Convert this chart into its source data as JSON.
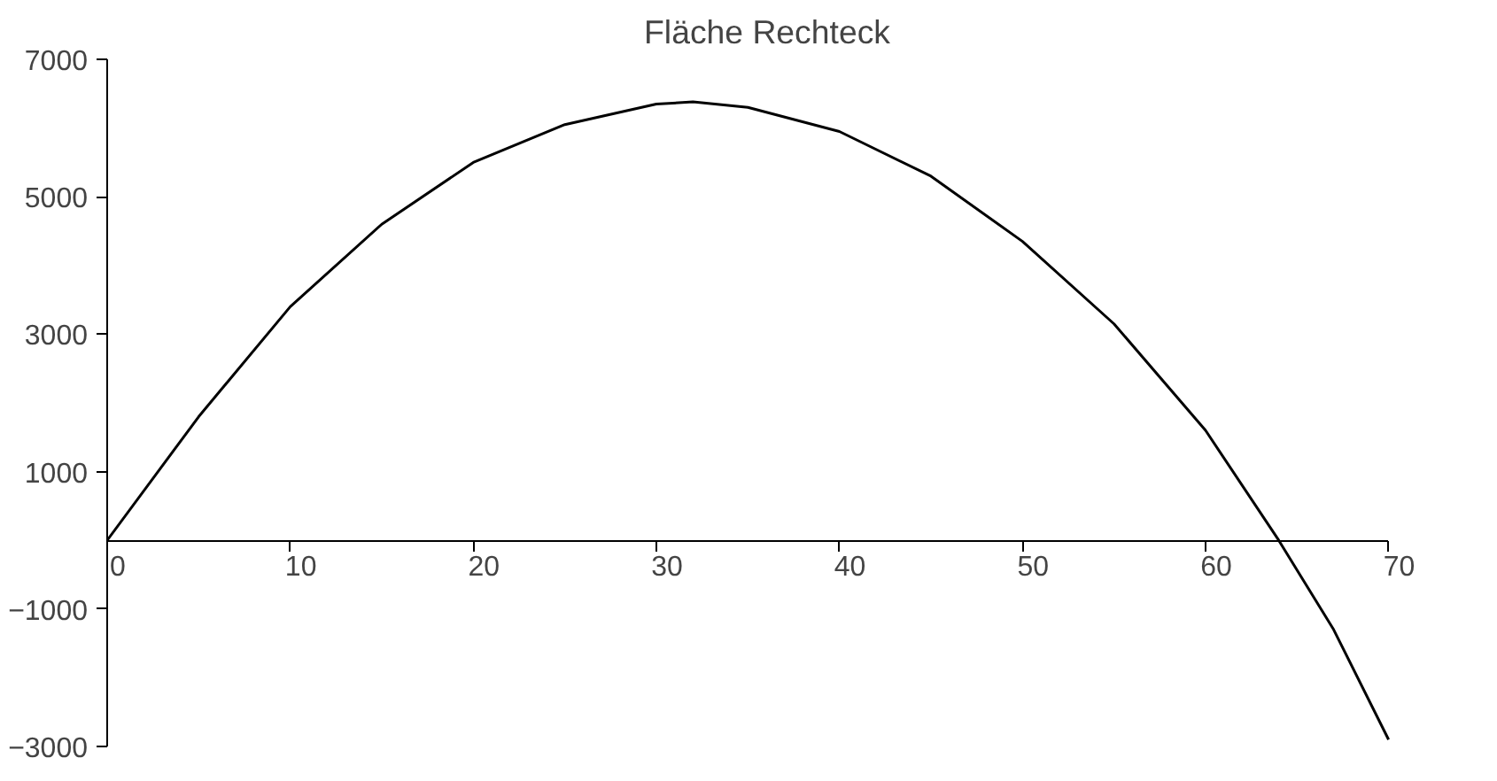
{
  "chart_data": {
    "type": "line",
    "title": "Fläche Rechteck",
    "series": [
      {
        "color": "#000000",
        "x": [
          0,
          5,
          10,
          15,
          20,
          25,
          30,
          32,
          35,
          40,
          45,
          50,
          55,
          60,
          64,
          67,
          70
        ],
        "values": [
          0,
          1800,
          3400,
          4600,
          5500,
          6050,
          6350,
          6380,
          6300,
          5950,
          5300,
          4350,
          3150,
          1600,
          0,
          -1300,
          -2900
        ]
      }
    ],
    "xlim": [
      0,
      70
    ],
    "xticks": [
      0,
      10,
      20,
      30,
      40,
      50,
      60,
      70
    ],
    "ylim": [
      -3000,
      7000
    ],
    "yticks": [
      -3000,
      -1000,
      1000,
      3000,
      5000,
      7000
    ],
    "grid": false,
    "marker": "none",
    "line_style": "solid"
  }
}
